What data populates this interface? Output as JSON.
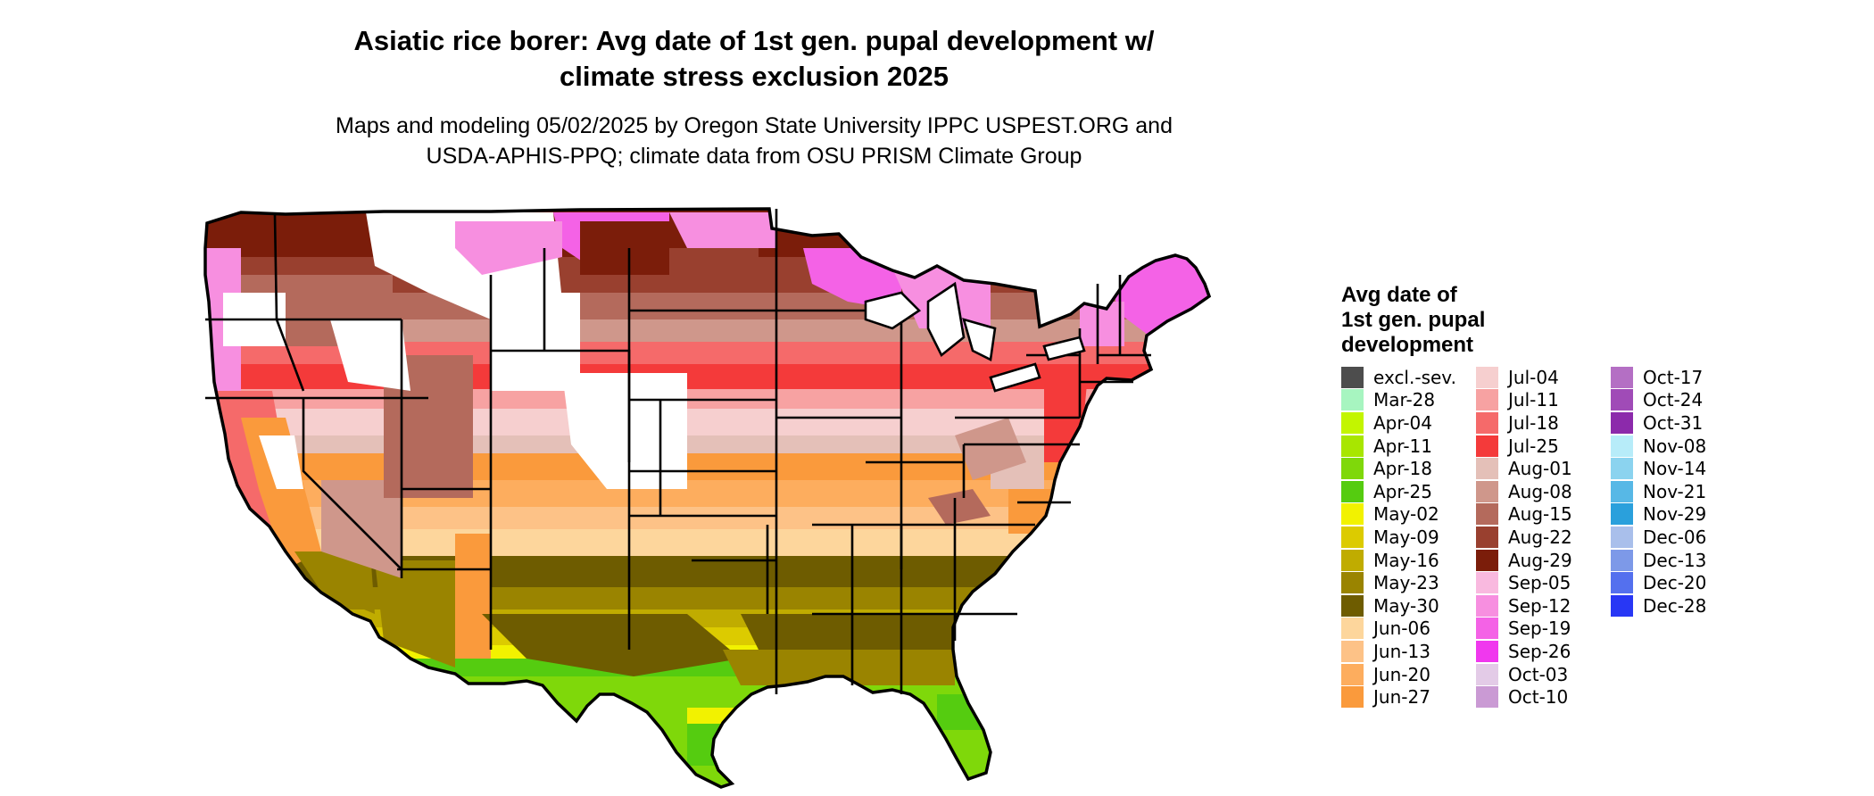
{
  "title": {
    "line1": "Asiatic rice borer: Avg date of 1st gen. pupal development w/",
    "line2": "climate stress exclusion 2025"
  },
  "subtitle": {
    "line1": "Maps and modeling 05/02/2025 by Oregon State University IPPC USPEST.ORG and",
    "line2": "USDA-APHIS-PPQ; climate data from OSU PRISM Climate Group"
  },
  "legend": {
    "title": [
      "Avg date of",
      "1st gen. pupal",
      "development"
    ],
    "columns": [
      [
        {
          "label": "excl.-sev.",
          "color": "#4d4d4d"
        },
        {
          "label": "Mar-28",
          "color": "#a7f5c0"
        },
        {
          "label": "Apr-04",
          "color": "#c3f500"
        },
        {
          "label": "Apr-11",
          "color": "#a8e600"
        },
        {
          "label": "Apr-18",
          "color": "#7fd80a"
        },
        {
          "label": "Apr-25",
          "color": "#55cc10"
        },
        {
          "label": "May-02",
          "color": "#f2f200"
        },
        {
          "label": "May-09",
          "color": "#dccb00"
        },
        {
          "label": "May-16",
          "color": "#c0ac00"
        },
        {
          "label": "May-23",
          "color": "#9a8400"
        },
        {
          "label": "May-30",
          "color": "#6e5c00"
        },
        {
          "label": "Jun-06",
          "color": "#fdd69c"
        },
        {
          "label": "Jun-13",
          "color": "#fdc287"
        },
        {
          "label": "Jun-20",
          "color": "#fdad5e"
        },
        {
          "label": "Jun-27",
          "color": "#fa9a3c"
        }
      ],
      [
        {
          "label": "Jul-04",
          "color": "#f6cfcf"
        },
        {
          "label": "Jul-11",
          "color": "#f7a2a2"
        },
        {
          "label": "Jul-18",
          "color": "#f56a6a"
        },
        {
          "label": "Jul-25",
          "color": "#f43a3a"
        },
        {
          "label": "Aug-01",
          "color": "#e4c0b8"
        },
        {
          "label": "Aug-08",
          "color": "#cf978b"
        },
        {
          "label": "Aug-15",
          "color": "#b46a5c"
        },
        {
          "label": "Aug-22",
          "color": "#99402f"
        },
        {
          "label": "Aug-29",
          "color": "#7b1d0a"
        },
        {
          "label": "Sep-05",
          "color": "#f9b9df"
        },
        {
          "label": "Sep-12",
          "color": "#f78fe0"
        },
        {
          "label": "Sep-19",
          "color": "#f462e6"
        },
        {
          "label": "Sep-26",
          "color": "#f038ee"
        },
        {
          "label": "Oct-03",
          "color": "#e3cbe7"
        },
        {
          "label": "Oct-10",
          "color": "#ca9ad4"
        }
      ],
      [
        {
          "label": "Oct-17",
          "color": "#b46fc4"
        },
        {
          "label": "Oct-24",
          "color": "#a04bb7"
        },
        {
          "label": "Oct-31",
          "color": "#8c2aab"
        },
        {
          "label": "Nov-08",
          "color": "#b7ecf9"
        },
        {
          "label": "Nov-14",
          "color": "#8bd3ef"
        },
        {
          "label": "Nov-21",
          "color": "#57b8e6"
        },
        {
          "label": "Nov-29",
          "color": "#2aa0dc"
        },
        {
          "label": "Dec-06",
          "color": "#a9bfeb"
        },
        {
          "label": "Dec-13",
          "color": "#7d99e8"
        },
        {
          "label": "Dec-20",
          "color": "#5470ee"
        },
        {
          "label": "Dec-28",
          "color": "#2837f5"
        }
      ]
    ]
  }
}
